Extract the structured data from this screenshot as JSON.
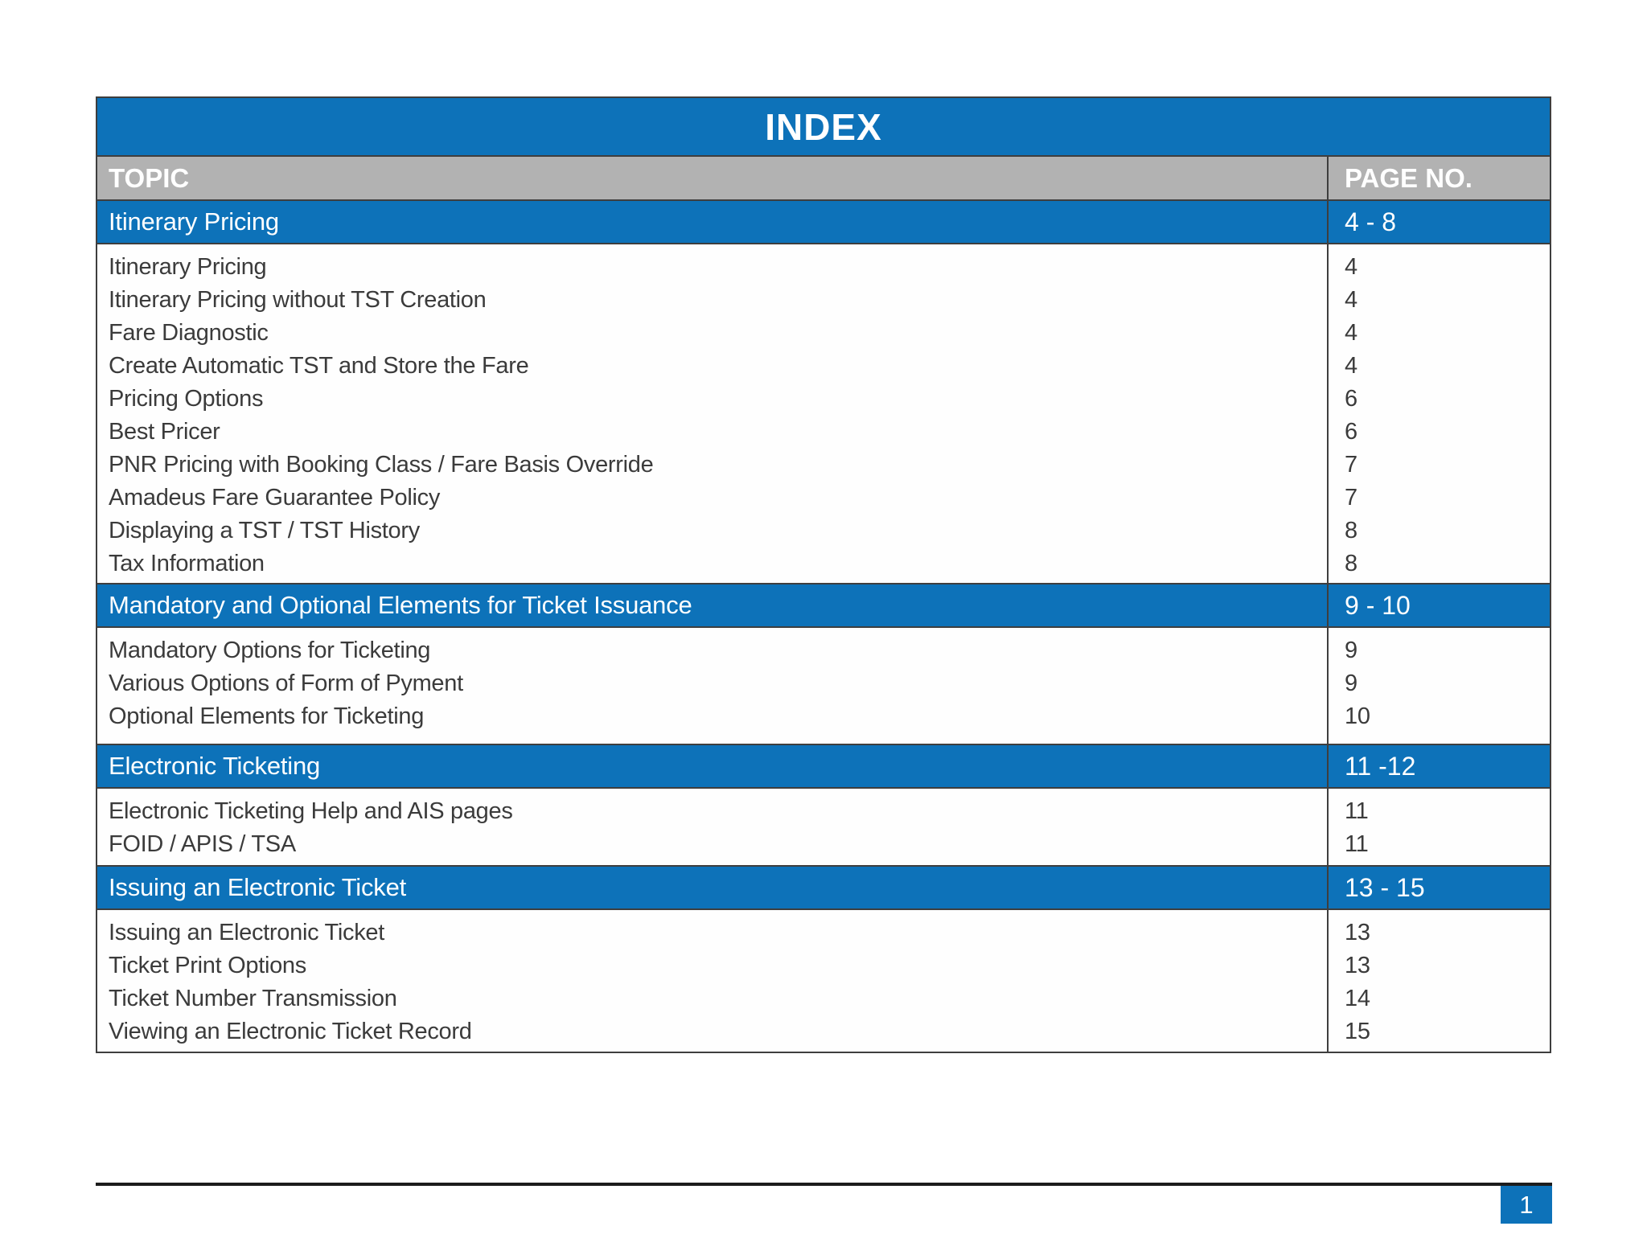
{
  "header": {
    "title": "INDEX",
    "topic_label": "TOPIC",
    "page_label": "PAGE NO."
  },
  "colors": {
    "blue": "#0d72b9",
    "gray": "#b2b2b2",
    "text": "#3b3b3b",
    "border": "#3e3e3e"
  },
  "table": {
    "sections": [
      {
        "title": "Itinerary Pricing",
        "page_range": "4 - 8",
        "items": [
          {
            "label": "Itinerary Pricing",
            "page": "4"
          },
          {
            "label": "Itinerary Pricing without TST Creation",
            "page": "4"
          },
          {
            "label": "Fare Diagnostic",
            "page": "4"
          },
          {
            "label": "Create Automatic TST and Store the Fare",
            "page": "4"
          },
          {
            "label": "Pricing Options",
            "page": "6"
          },
          {
            "label": "Best Pricer",
            "page": "6"
          },
          {
            "label": "PNR Pricing with Booking Class / Fare Basis Override",
            "page": "7"
          },
          {
            "label": "Amadeus Fare Guarantee Policy",
            "page": "7"
          },
          {
            "label": "Displaying a TST / TST History",
            "page": "8"
          },
          {
            "label": "Tax Information",
            "page": "8"
          }
        ]
      },
      {
        "title": "Mandatory and Optional Elements for Ticket Issuance",
        "page_range": "9 - 10",
        "items": [
          {
            "label": "Mandatory Options for Ticketing",
            "page": "9"
          },
          {
            "label": "Various Options of Form of Pyment",
            "page": "9"
          },
          {
            "label": "Optional Elements for Ticketing",
            "page": "10"
          }
        ]
      },
      {
        "title": "Electronic Ticketing",
        "page_range": "11 -12",
        "items": [
          {
            "label": "Electronic Ticketing Help and AIS pages",
            "page": "11"
          },
          {
            "label": "FOID / APIS / TSA",
            "page": "11"
          }
        ]
      },
      {
        "title": "Issuing an Electronic Ticket",
        "page_range": "13 - 15",
        "items": [
          {
            "label": "Issuing an Electronic Ticket",
            "page": "13"
          },
          {
            "label": "Ticket Print Options",
            "page": "13"
          },
          {
            "label": "Ticket Number Transmission",
            "page": "14"
          },
          {
            "label": "Viewing an Electronic Ticket Record",
            "page": "15"
          }
        ]
      }
    ]
  },
  "footer": {
    "page_number": "1"
  }
}
